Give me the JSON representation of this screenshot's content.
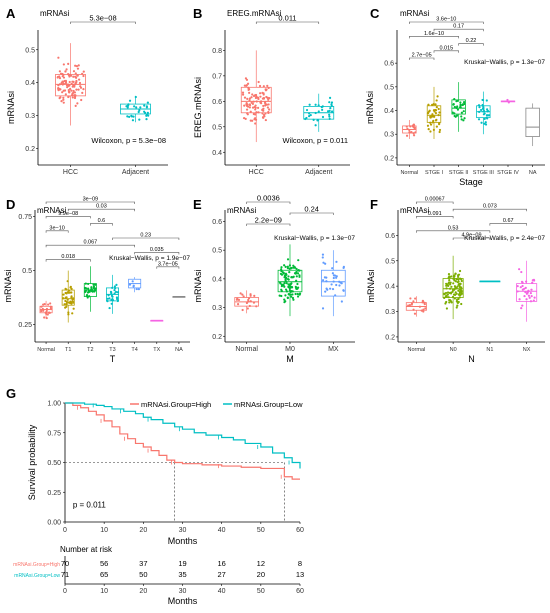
{
  "figure_title": "",
  "colors": {
    "red": "#f8766d",
    "olive": "#b79f00",
    "green": "#00ba38",
    "teal": "#00bfc4",
    "blue": "#619cff",
    "magenta": "#f564e3",
    "gray": "#888888",
    "cyan": "#00bfc4"
  },
  "chart_data": [
    {
      "panel": "A",
      "type": "box",
      "title": "mRNAsi",
      "xlabel": "",
      "ylabel": "mRNAsi",
      "ylim": [
        0.15,
        0.56
      ],
      "yticks": [
        0.2,
        0.3,
        0.4,
        0.5
      ],
      "categories": [
        "HCC",
        "Adjacent"
      ],
      "boxes": [
        {
          "category": "HCC",
          "color": "#f8766d",
          "q1": 0.36,
          "median": 0.395,
          "q3": 0.425,
          "lo": 0.27,
          "hi": 0.52,
          "n": 110
        },
        {
          "category": "Adjacent",
          "color": "#00bfc4",
          "q1": 0.305,
          "median": 0.32,
          "q3": 0.335,
          "lo": 0.28,
          "hi": 0.36,
          "n": 30
        }
      ],
      "comparisons": [
        {
          "from": "HCC",
          "to": "Adjacent",
          "label": "5.3e−08"
        }
      ],
      "annotation": "Wilcoxon, p = 5.3e−08"
    },
    {
      "panel": "B",
      "type": "box",
      "title": "EREG.mRNAsi",
      "xlabel": "",
      "ylabel": "EREG.mRNAsi",
      "ylim": [
        0.35,
        0.88
      ],
      "yticks": [
        0.4,
        0.5,
        0.6,
        0.7,
        0.8
      ],
      "categories": [
        "HCC",
        "Adjacent"
      ],
      "boxes": [
        {
          "category": "HCC",
          "color": "#f8766d",
          "q1": 0.555,
          "median": 0.6,
          "q3": 0.655,
          "lo": 0.44,
          "hi": 0.8,
          "n": 110
        },
        {
          "category": "Adjacent",
          "color": "#00bfc4",
          "q1": 0.53,
          "median": 0.555,
          "q3": 0.58,
          "lo": 0.48,
          "hi": 0.63,
          "n": 30
        }
      ],
      "comparisons": [
        {
          "from": "HCC",
          "to": "Adjacent",
          "label": "0.011"
        }
      ],
      "annotation": "Wilcoxon, p = 0.011"
    },
    {
      "panel": "C",
      "type": "box",
      "title": "mRNAsi",
      "xlabel": "Stage",
      "ylabel": "mRNAsi",
      "ylim": [
        0.17,
        0.74
      ],
      "yticks": [
        0.2,
        0.3,
        0.4,
        0.5,
        0.6
      ],
      "categories": [
        "Normal",
        "STGE I",
        "STGE II",
        "STGE III",
        "STGE IV",
        "NA"
      ],
      "boxes": [
        {
          "category": "Normal",
          "color": "#f8766d",
          "q1": 0.305,
          "median": 0.32,
          "q3": 0.335,
          "lo": 0.28,
          "hi": 0.36,
          "n": 20
        },
        {
          "category": "STGE I",
          "color": "#b79f00",
          "q1": 0.35,
          "median": 0.38,
          "q3": 0.42,
          "lo": 0.28,
          "hi": 0.5,
          "n": 40
        },
        {
          "category": "STGE II",
          "color": "#00ba38",
          "q1": 0.385,
          "median": 0.41,
          "q3": 0.445,
          "lo": 0.31,
          "hi": 0.52,
          "n": 30
        },
        {
          "category": "STGE III",
          "color": "#00bfc4",
          "q1": 0.37,
          "median": 0.395,
          "q3": 0.42,
          "lo": 0.3,
          "hi": 0.48,
          "n": 30
        },
        {
          "category": "STGE IV",
          "color": "#f564e3",
          "q1": 0.44,
          "median": 0.44,
          "q3": 0.44,
          "lo": 0.44,
          "hi": 0.44,
          "n": 2
        },
        {
          "category": "NA",
          "color": "#888888",
          "q1": 0.29,
          "median": 0.33,
          "q3": 0.41,
          "lo": 0.25,
          "hi": 0.43,
          "n": 0
        }
      ],
      "comparisons": [
        {
          "from": "Normal",
          "to": "STGE III",
          "label": "3.6e−10"
        },
        {
          "from": "Normal",
          "to": "STGE III",
          "label": "0.17",
          "from_idx": 1
        },
        {
          "from": "Normal",
          "to": "STGE II",
          "label": "1.6e−10"
        },
        {
          "from": "STGE II",
          "to": "STGE III",
          "label": "0.22"
        },
        {
          "from": "STGE I",
          "to": "STGE II",
          "label": "0.015"
        },
        {
          "from": "Normal",
          "to": "STGE I",
          "label": "2.7e−05"
        }
      ],
      "annotation": "Kruskal−Wallis, p = 1.3e−07"
    },
    {
      "panel": "D",
      "type": "box",
      "title": "mRNAsi",
      "xlabel": "T",
      "ylabel": "mRNAsi",
      "ylim": [
        0.17,
        0.78
      ],
      "yticks": [
        0.25,
        0.5,
        0.75
      ],
      "categories": [
        "Normal",
        "T1",
        "T2",
        "T3",
        "T4",
        "TX",
        "NA"
      ],
      "boxes": [
        {
          "category": "Normal",
          "color": "#f8766d",
          "q1": 0.305,
          "median": 0.32,
          "q3": 0.335,
          "lo": 0.28,
          "hi": 0.36,
          "n": 20
        },
        {
          "category": "T1",
          "color": "#b79f00",
          "q1": 0.34,
          "median": 0.37,
          "q3": 0.41,
          "lo": 0.26,
          "hi": 0.5,
          "n": 45
        },
        {
          "category": "T2",
          "color": "#00ba38",
          "q1": 0.38,
          "median": 0.41,
          "q3": 0.44,
          "lo": 0.31,
          "hi": 0.52,
          "n": 30
        },
        {
          "category": "T3",
          "color": "#00bfc4",
          "q1": 0.36,
          "median": 0.39,
          "q3": 0.42,
          "lo": 0.3,
          "hi": 0.48,
          "n": 25
        },
        {
          "category": "T4",
          "color": "#619cff",
          "q1": 0.42,
          "median": 0.44,
          "q3": 0.46,
          "lo": 0.4,
          "hi": 0.47,
          "n": 6
        },
        {
          "category": "TX",
          "color": "#f564e3",
          "q1": 0.27,
          "median": 0.27,
          "q3": 0.27,
          "lo": 0.27,
          "hi": 0.27,
          "n": 0
        },
        {
          "category": "NA",
          "color": "#888888",
          "q1": 0.38,
          "median": 0.38,
          "q3": 0.38,
          "lo": 0.38,
          "hi": 0.38,
          "n": 0
        }
      ],
      "comparisons": [
        {
          "label": "3e−09"
        },
        {
          "label": "0.03"
        },
        {
          "label": "9.9e−08"
        },
        {
          "label": "0.6"
        },
        {
          "label": "3e−10"
        },
        {
          "label": "0.23"
        },
        {
          "label": "0.067"
        },
        {
          "label": "0.035"
        },
        {
          "label": "0.018"
        },
        {
          "label": "3.7e−05"
        }
      ],
      "annotation": "Kruskal−Wallis, p = 1.9e−07"
    },
    {
      "panel": "E",
      "type": "box",
      "title": "mRNAsi",
      "xlabel": "M",
      "ylabel": "mRNAsi",
      "ylim": [
        0.18,
        0.64
      ],
      "yticks": [
        0.2,
        0.3,
        0.4,
        0.5,
        0.6
      ],
      "categories": [
        "Normal",
        "M0",
        "MX"
      ],
      "boxes": [
        {
          "category": "Normal",
          "color": "#f8766d",
          "q1": 0.305,
          "median": 0.32,
          "q3": 0.335,
          "lo": 0.28,
          "hi": 0.36,
          "n": 20
        },
        {
          "category": "M0",
          "color": "#00ba38",
          "q1": 0.355,
          "median": 0.39,
          "q3": 0.43,
          "lo": 0.27,
          "hi": 0.52,
          "n": 110
        },
        {
          "category": "MX",
          "color": "#619cff",
          "q1": 0.34,
          "median": 0.39,
          "q3": 0.43,
          "lo": 0.27,
          "hi": 0.5,
          "n": 35
        }
      ],
      "comparisons": [
        {
          "label": "0.0036"
        },
        {
          "label": "0.24"
        },
        {
          "label": "2.2e−09"
        }
      ],
      "annotation": "Kruskal−Wallis, p = 1.3e−07"
    },
    {
      "panel": "F",
      "type": "box",
      "title": "mRNAsi",
      "xlabel": "N",
      "ylabel": "mRNAsi",
      "ylim": [
        0.18,
        0.7
      ],
      "yticks": [
        0.2,
        0.3,
        0.4,
        0.5,
        0.6
      ],
      "categories": [
        "Normal",
        "N0",
        "N1",
        "NX"
      ],
      "boxes": [
        {
          "category": "Normal",
          "color": "#f8766d",
          "q1": 0.305,
          "median": 0.32,
          "q3": 0.335,
          "lo": 0.28,
          "hi": 0.36,
          "n": 20
        },
        {
          "category": "N0",
          "color": "#7cae00",
          "q1": 0.355,
          "median": 0.39,
          "q3": 0.43,
          "lo": 0.27,
          "hi": 0.52,
          "n": 110
        },
        {
          "category": "N1",
          "color": "#00bfc4",
          "q1": 0.42,
          "median": 0.42,
          "q3": 0.42,
          "lo": 0.42,
          "hi": 0.42,
          "n": 0
        },
        {
          "category": "NX",
          "color": "#f564e3",
          "q1": 0.34,
          "median": 0.38,
          "q3": 0.41,
          "lo": 0.26,
          "hi": 0.5,
          "n": 35
        }
      ],
      "comparisons": [
        {
          "label": "0.00067"
        },
        {
          "label": "0.073"
        },
        {
          "label": "0.091"
        },
        {
          "label": "0.67"
        },
        {
          "label": "0.53"
        },
        {
          "label": "4.9e−09"
        }
      ],
      "annotation": "Kruskal−Wallis, p = 2.4e−07"
    },
    {
      "panel": "G",
      "type": "line",
      "subtype": "kaplan-meier",
      "xlabel": "Months",
      "ylabel": "Survival probability",
      "xlim": [
        0,
        60
      ],
      "ylim": [
        0,
        1
      ],
      "xticks": [
        0,
        10,
        20,
        30,
        40,
        50,
        60
      ],
      "yticks": [
        0.0,
        0.25,
        0.5,
        0.75,
        1.0
      ],
      "ytick_labels": [
        "0.00",
        "0.25",
        "0.50",
        "0.75",
        "1.00"
      ],
      "legend": [
        "mRNAsi.Group=High",
        "mRNAsi.Group=Low"
      ],
      "legend_placement": "top",
      "annotation": "p = 0.011",
      "median_lines": [
        28,
        56
      ],
      "series": [
        {
          "name": "mRNAsi.Group=High",
          "color": "#f8766d",
          "x": [
            0,
            2,
            4,
            6,
            8,
            10,
            12,
            14,
            16,
            18,
            20,
            22,
            24,
            26,
            28,
            30,
            35,
            40,
            45,
            50,
            56,
            58,
            60
          ],
          "y": [
            1.0,
            0.98,
            0.96,
            0.93,
            0.9,
            0.85,
            0.8,
            0.74,
            0.7,
            0.66,
            0.63,
            0.6,
            0.56,
            0.52,
            0.5,
            0.49,
            0.48,
            0.47,
            0.46,
            0.45,
            0.38,
            0.36,
            0.36
          ]
        },
        {
          "name": "mRNAsi.Group=Low",
          "color": "#00bfc4",
          "x": [
            0,
            5,
            8,
            10,
            12,
            15,
            18,
            20,
            22,
            25,
            28,
            30,
            33,
            36,
            40,
            43,
            46,
            50,
            53,
            56,
            58,
            60
          ],
          "y": [
            1.0,
            0.99,
            0.98,
            0.97,
            0.95,
            0.93,
            0.91,
            0.88,
            0.86,
            0.83,
            0.8,
            0.78,
            0.75,
            0.73,
            0.71,
            0.69,
            0.66,
            0.63,
            0.58,
            0.54,
            0.5,
            0.45
          ]
        }
      ],
      "risk_table": {
        "title": "Number at risk",
        "xlabel": "Months",
        "times": [
          0,
          10,
          20,
          30,
          40,
          50,
          60
        ],
        "rows": [
          {
            "name": "mRNAsi.Group=High",
            "color": "#f8766d",
            "values": [
              "70",
              "56",
              "37",
              "19",
              "16",
              "12",
              "8"
            ]
          },
          {
            "name": "mRNAsi.Group=Low",
            "color": "#00bfc4",
            "values": [
              "71",
              "65",
              "50",
              "35",
              "27",
              "20",
              "13"
            ]
          }
        ]
      }
    }
  ]
}
